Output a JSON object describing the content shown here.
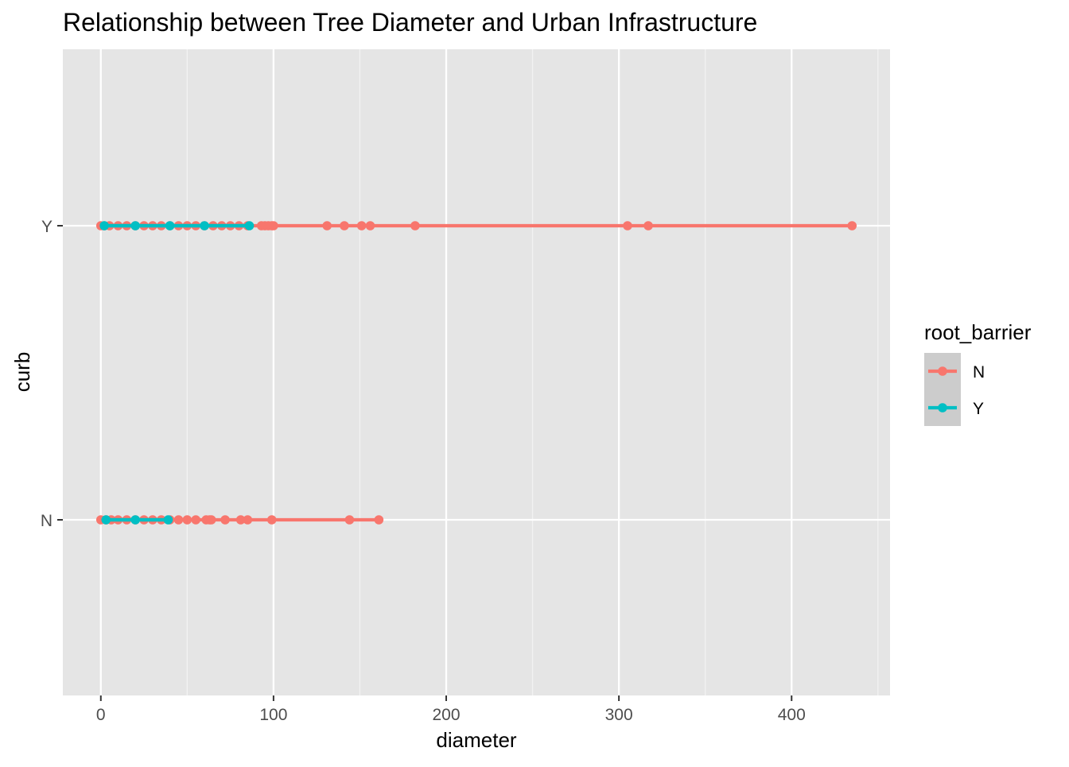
{
  "chart_data": {
    "type": "line",
    "title": "Relationship between Tree Diameter and Urban Infrastructure",
    "xlabel": "diameter",
    "ylabel": "curb",
    "xlim": [
      -22,
      457
    ],
    "x_ticks": [
      0,
      100,
      200,
      300,
      400
    ],
    "y_categories": [
      "N",
      "Y"
    ],
    "grid": true,
    "legend": {
      "title": "root_barrier",
      "position": "right",
      "entries": [
        "N",
        "Y"
      ]
    },
    "colors": {
      "N": "#F8766D",
      "Y": "#00BFC4",
      "panel": "#E5E5E5",
      "grid": "#FFFFFF"
    },
    "series": [
      {
        "name": "N",
        "color": "#F8766D",
        "points": [
          {
            "curb": "Y",
            "x": 0
          },
          {
            "curb": "Y",
            "x": 2
          },
          {
            "curb": "Y",
            "x": 5
          },
          {
            "curb": "Y",
            "x": 10
          },
          {
            "curb": "Y",
            "x": 15
          },
          {
            "curb": "Y",
            "x": 20
          },
          {
            "curb": "Y",
            "x": 25
          },
          {
            "curb": "Y",
            "x": 30
          },
          {
            "curb": "Y",
            "x": 35
          },
          {
            "curb": "Y",
            "x": 40
          },
          {
            "curb": "Y",
            "x": 45
          },
          {
            "curb": "Y",
            "x": 50
          },
          {
            "curb": "Y",
            "x": 55
          },
          {
            "curb": "Y",
            "x": 60
          },
          {
            "curb": "Y",
            "x": 65
          },
          {
            "curb": "Y",
            "x": 70
          },
          {
            "curb": "Y",
            "x": 75
          },
          {
            "curb": "Y",
            "x": 80
          },
          {
            "curb": "Y",
            "x": 85
          },
          {
            "curb": "Y",
            "x": 93
          },
          {
            "curb": "Y",
            "x": 95
          },
          {
            "curb": "Y",
            "x": 97
          },
          {
            "curb": "Y",
            "x": 99
          },
          {
            "curb": "Y",
            "x": 100
          },
          {
            "curb": "Y",
            "x": 131
          },
          {
            "curb": "Y",
            "x": 141
          },
          {
            "curb": "Y",
            "x": 151
          },
          {
            "curb": "Y",
            "x": 156
          },
          {
            "curb": "Y",
            "x": 182
          },
          {
            "curb": "Y",
            "x": 305
          },
          {
            "curb": "Y",
            "x": 317
          },
          {
            "curb": "Y",
            "x": 435
          },
          {
            "curb": "N",
            "x": 0
          },
          {
            "curb": "N",
            "x": 3
          },
          {
            "curb": "N",
            "x": 6
          },
          {
            "curb": "N",
            "x": 10
          },
          {
            "curb": "N",
            "x": 15
          },
          {
            "curb": "N",
            "x": 20
          },
          {
            "curb": "N",
            "x": 25
          },
          {
            "curb": "N",
            "x": 30
          },
          {
            "curb": "N",
            "x": 35
          },
          {
            "curb": "N",
            "x": 40
          },
          {
            "curb": "N",
            "x": 45
          },
          {
            "curb": "N",
            "x": 50
          },
          {
            "curb": "N",
            "x": 55
          },
          {
            "curb": "N",
            "x": 61
          },
          {
            "curb": "N",
            "x": 63
          },
          {
            "curb": "N",
            "x": 64
          },
          {
            "curb": "N",
            "x": 72
          },
          {
            "curb": "N",
            "x": 81
          },
          {
            "curb": "N",
            "x": 85
          },
          {
            "curb": "N",
            "x": 99
          },
          {
            "curb": "N",
            "x": 144
          },
          {
            "curb": "N",
            "x": 161
          }
        ]
      },
      {
        "name": "Y",
        "color": "#00BFC4",
        "points": [
          {
            "curb": "Y",
            "x": 2
          },
          {
            "curb": "Y",
            "x": 20
          },
          {
            "curb": "Y",
            "x": 40
          },
          {
            "curb": "Y",
            "x": 60
          },
          {
            "curb": "Y",
            "x": 86
          },
          {
            "curb": "N",
            "x": 3
          },
          {
            "curb": "N",
            "x": 20
          },
          {
            "curb": "N",
            "x": 39
          }
        ]
      }
    ]
  }
}
